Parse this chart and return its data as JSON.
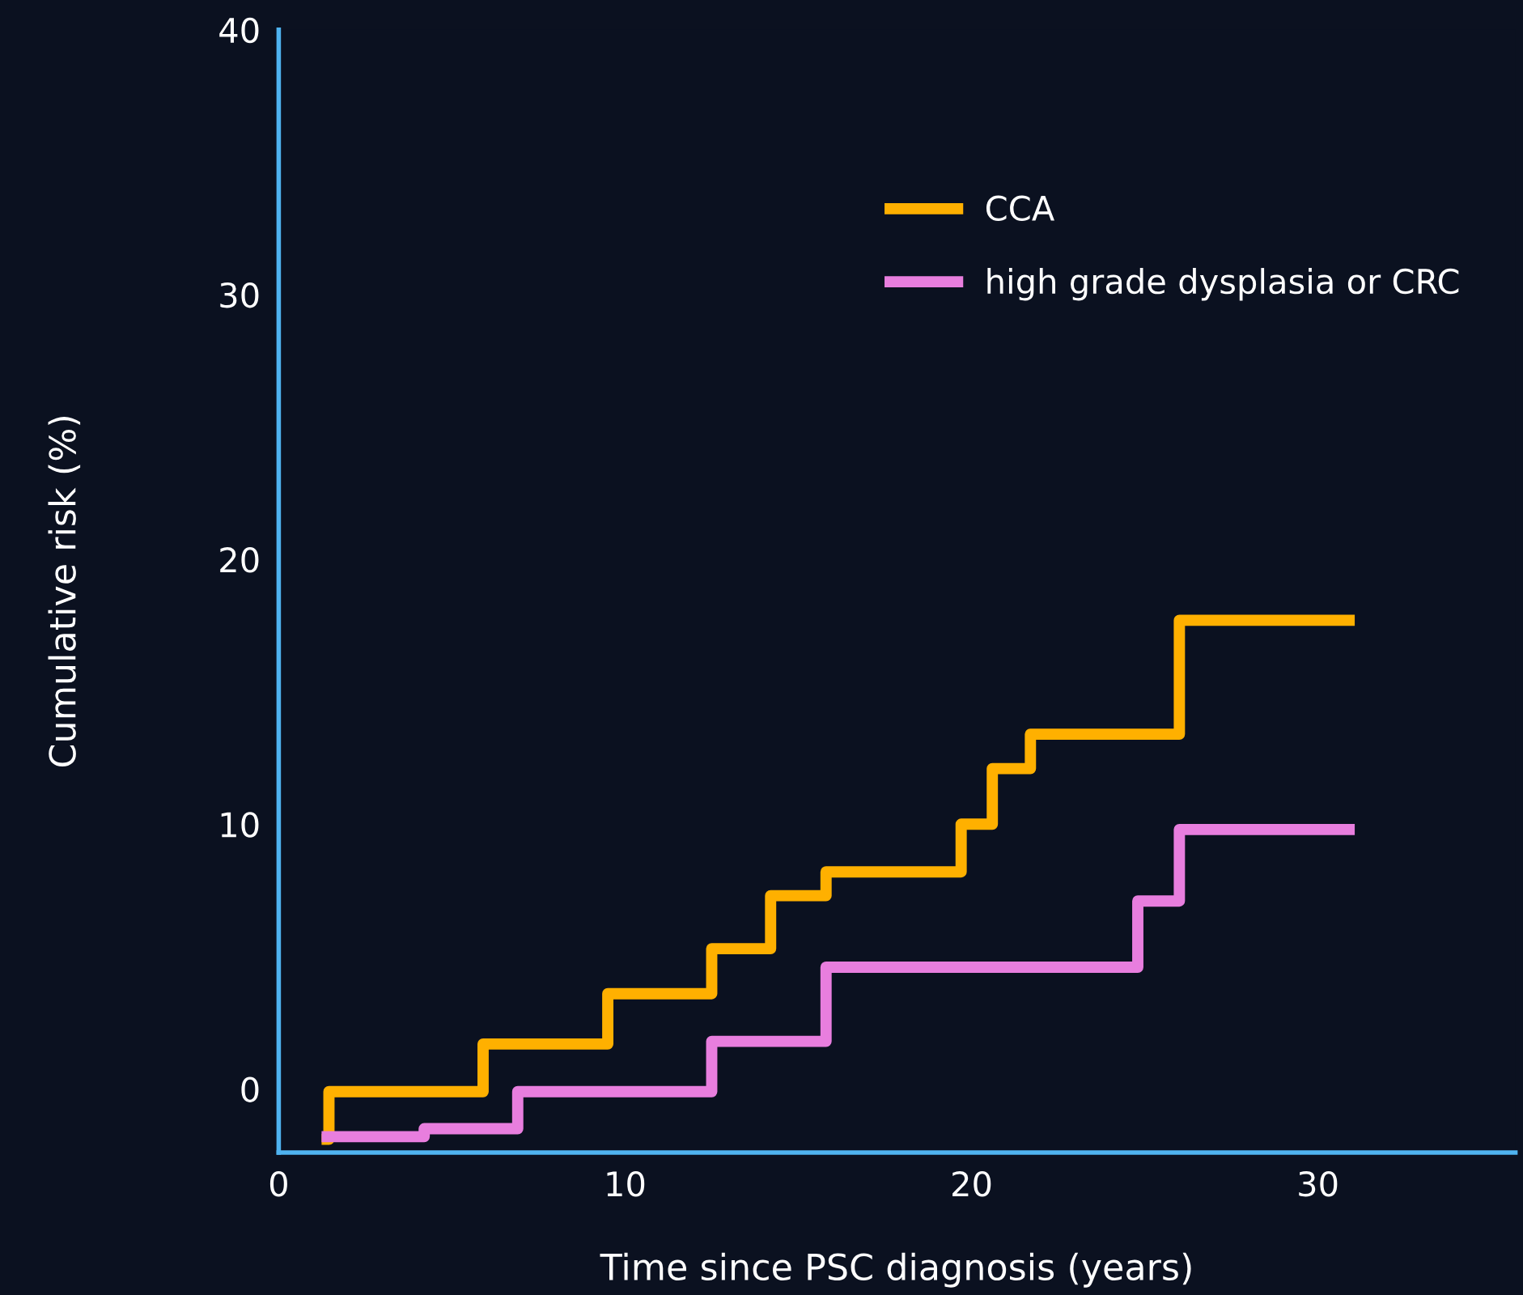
{
  "chart_data": {
    "type": "step",
    "xlabel": "Time since PSC diagnosis (years)",
    "ylabel": "Cumulative risk (%)",
    "xlim": [
      0,
      35.7
    ],
    "ylim": [
      -2.4,
      40
    ],
    "xticks": [
      0,
      10,
      20,
      30
    ],
    "yticks": [
      0,
      10,
      20,
      30,
      40
    ],
    "grid": false,
    "legend": "top right",
    "marker": "none",
    "line_style": "solid",
    "series": [
      {
        "name": "CCA",
        "color": "#ffb000",
        "x": [
          1.4,
          1.45,
          5.9,
          9.5,
          12.5,
          14.2,
          15.8,
          19.7,
          20.6,
          21.7,
          26.0,
          30.9
        ],
        "values": [
          -1.9,
          -0.1,
          1.7,
          3.6,
          5.3,
          7.3,
          8.2,
          10.0,
          12.1,
          13.4,
          17.7,
          17.7
        ]
      },
      {
        "name": "high grade dysplasia or CRC",
        "color": "#e87ede",
        "x": [
          1.4,
          4.2,
          6.9,
          12.5,
          15.8,
          24.8,
          26.0,
          30.9
        ],
        "values": [
          -1.8,
          -1.5,
          -0.1,
          1.8,
          4.6,
          7.1,
          9.8,
          9.8
        ]
      }
    ]
  }
}
